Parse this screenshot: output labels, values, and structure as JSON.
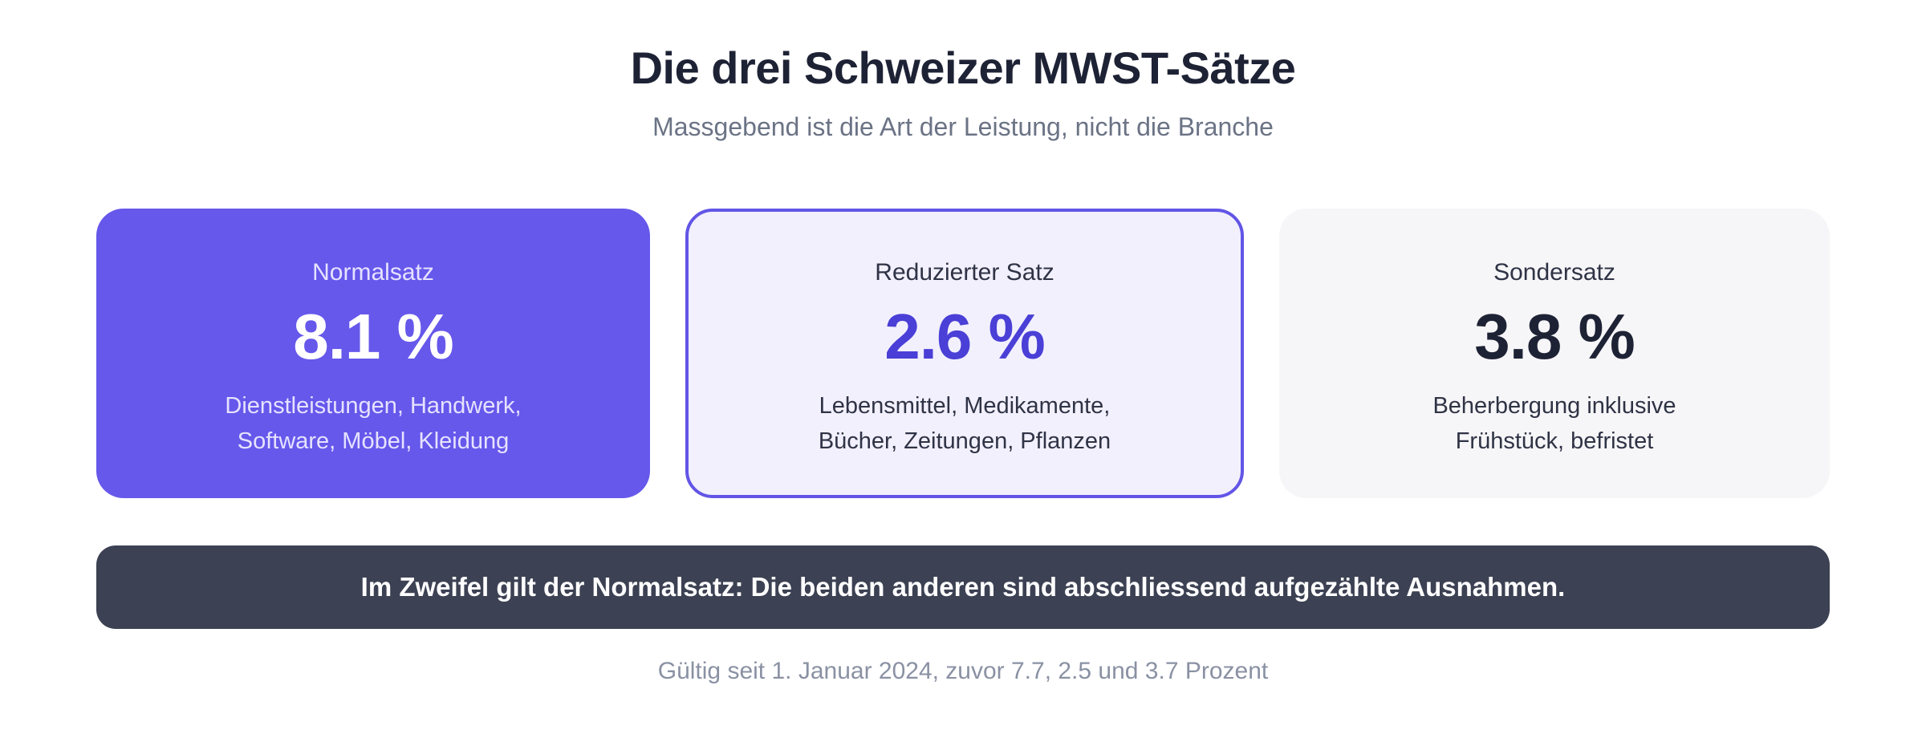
{
  "header": {
    "title": "Die drei Schweizer MWST-Sätze",
    "subtitle": "Massgebend ist die Art der Leistung, nicht die Branche"
  },
  "rates": [
    {
      "label": "Normalsatz",
      "value": "8.1 %",
      "desc_line1": "Dienstleistungen, Handwerk,",
      "desc_line2": "Software, Möbel, Kleidung"
    },
    {
      "label": "Reduzierter Satz",
      "value": "2.6 %",
      "desc_line1": "Lebensmittel, Medikamente,",
      "desc_line2": "Bücher, Zeitungen, Pflanzen"
    },
    {
      "label": "Sondersatz",
      "value": "3.8 %",
      "desc_line1": "Beherbergung inklusive",
      "desc_line2": "Frühstück, befristet"
    }
  ],
  "banner": {
    "text": "Im Zweifel gilt der Normalsatz: Die beiden anderen sind abschliessend aufgezählte Ausnahmen."
  },
  "footnote": "Gültig seit 1. Januar 2024, zuvor 7.7, 2.5 und 3.7 Prozent",
  "colors": {
    "accent": "#6658eb",
    "accent_dark": "#4a3fd6",
    "banner_bg": "#3c4153",
    "text_dark": "#1e2235"
  }
}
